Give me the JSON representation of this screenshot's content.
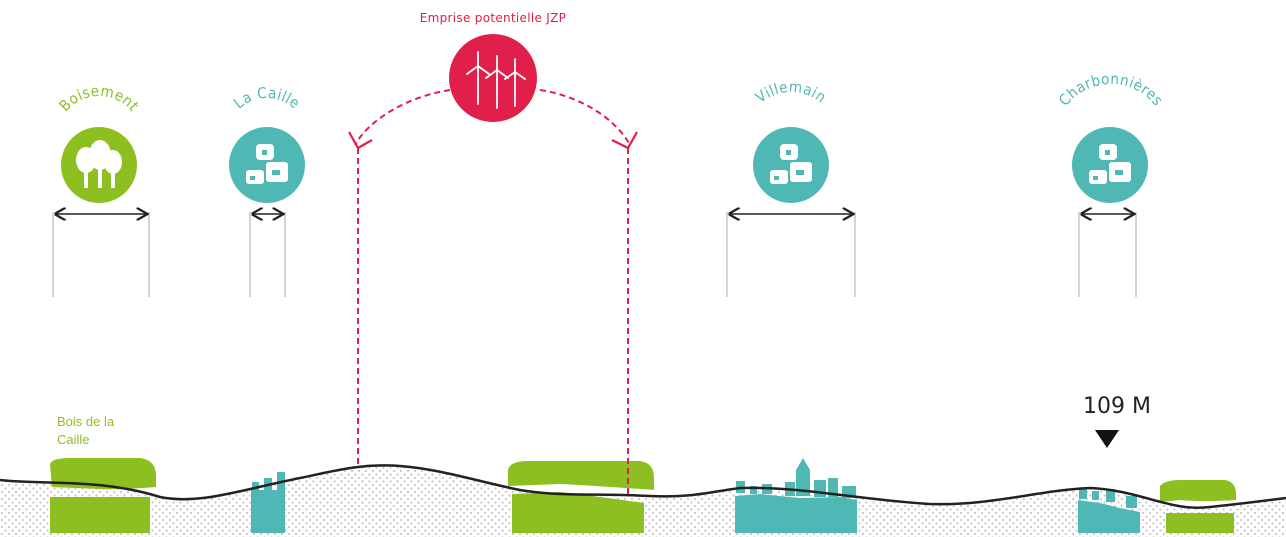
{
  "colors": {
    "green": "#8cbf1f",
    "teal": "#4fb8b4",
    "red": "#e0204a",
    "dark": "#222222",
    "ground_dots": "#c9c9c9"
  },
  "jzp": {
    "title": "Emprise potentielle JZP",
    "icon": "wind-turbines-icon"
  },
  "markers": [
    {
      "label": "Boisement",
      "type": "forest",
      "icon": "trees-icon"
    },
    {
      "label": "La Caille",
      "type": "village",
      "icon": "houses-icon"
    },
    {
      "label": "Villemain",
      "type": "village",
      "icon": "houses-icon"
    },
    {
      "label": "Charbonnières",
      "type": "village",
      "icon": "houses-icon"
    }
  ],
  "terrain": {
    "elevation_label": "109 M",
    "bois_label_line1": "Bois de la",
    "bois_label_line2": "Caille"
  }
}
